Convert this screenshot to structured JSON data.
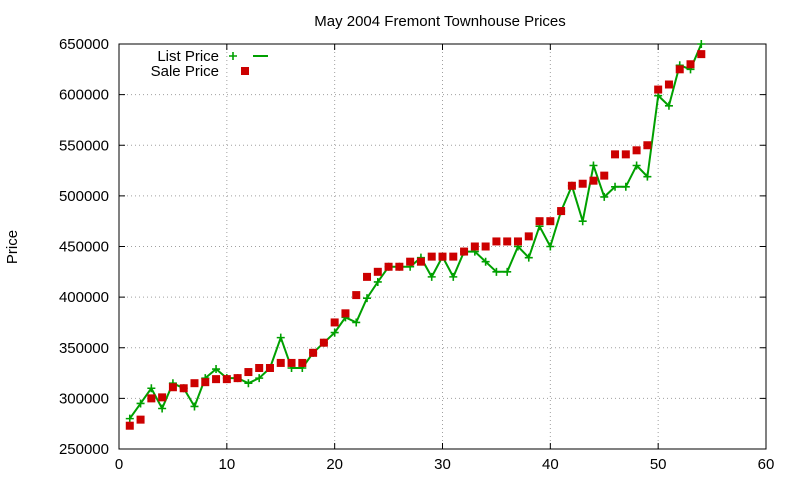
{
  "chart_data": {
    "type": "line",
    "title": "May 2004 Fremont Townhouse Prices",
    "xlabel": "",
    "ylabel": "Price",
    "xlim": [
      0,
      60
    ],
    "ylim": [
      250000,
      650000
    ],
    "xticks": [
      0,
      10,
      20,
      30,
      40,
      50,
      60
    ],
    "yticks": [
      250000,
      300000,
      350000,
      400000,
      450000,
      500000,
      550000,
      600000,
      650000
    ],
    "grid": true,
    "legend_position": "top-left",
    "series": [
      {
        "name": "List Price",
        "style": "line-plus",
        "color": "#00a000",
        "x": [
          1,
          2,
          3,
          4,
          5,
          6,
          7,
          8,
          9,
          10,
          11,
          12,
          13,
          14,
          15,
          16,
          17,
          18,
          19,
          20,
          21,
          22,
          23,
          24,
          25,
          26,
          27,
          28,
          29,
          30,
          31,
          32,
          33,
          34,
          35,
          36,
          37,
          38,
          39,
          40,
          41,
          42,
          43,
          44,
          45,
          46,
          47,
          48,
          49,
          50,
          51,
          52,
          53,
          54
        ],
        "y": [
          280000,
          295000,
          310000,
          290000,
          315000,
          310000,
          292000,
          320000,
          329000,
          320000,
          320000,
          315000,
          320000,
          330000,
          360000,
          330000,
          330000,
          345000,
          355000,
          365000,
          380000,
          375000,
          399000,
          415000,
          430000,
          430000,
          430000,
          439000,
          420000,
          440000,
          420000,
          445000,
          445000,
          435000,
          425000,
          425000,
          450000,
          439000,
          470000,
          450000,
          485000,
          510000,
          475000,
          530000,
          499000,
          509000,
          509000,
          530000,
          519000,
          599000,
          589000,
          629000,
          625000,
          650000
        ]
      },
      {
        "name": "Sale Price",
        "style": "square",
        "color": "#cc0000",
        "x": [
          1,
          2,
          3,
          4,
          5,
          6,
          7,
          8,
          9,
          10,
          11,
          12,
          13,
          14,
          15,
          16,
          17,
          18,
          19,
          20,
          21,
          22,
          23,
          24,
          25,
          26,
          27,
          28,
          29,
          30,
          31,
          32,
          33,
          34,
          35,
          36,
          37,
          38,
          39,
          40,
          41,
          42,
          43,
          44,
          45,
          46,
          47,
          48,
          49,
          50,
          51,
          52,
          53,
          54
        ],
        "y": [
          273000,
          279000,
          300000,
          301000,
          311000,
          310000,
          315000,
          316000,
          319000,
          319000,
          320000,
          326000,
          330000,
          330000,
          335000,
          335000,
          335000,
          345000,
          355000,
          375000,
          384000,
          402000,
          420000,
          425000,
          430000,
          430000,
          435000,
          435000,
          440000,
          440000,
          440000,
          445000,
          450000,
          450000,
          455000,
          455000,
          455000,
          460000,
          475000,
          475000,
          485000,
          510000,
          512000,
          515000,
          520000,
          541000,
          541000,
          545000,
          550000,
          605000,
          610000,
          625000,
          630000,
          640000
        ]
      }
    ]
  }
}
